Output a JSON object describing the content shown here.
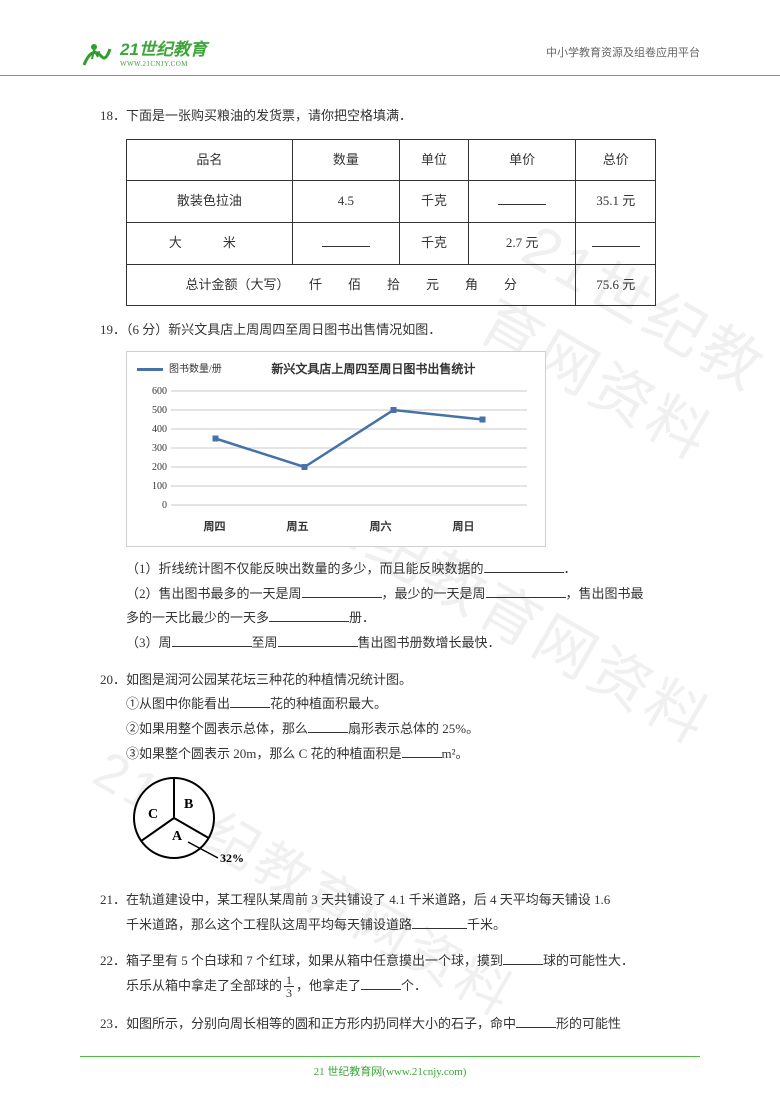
{
  "header": {
    "logo_main": "21世纪教育",
    "logo_sub": "WWW.21CNJY.COM",
    "right": "中小学教育资源及组卷应用平台"
  },
  "watermark": "21世纪教育网资料",
  "q18": {
    "num": "18．",
    "text": "下面是一张购买粮油的发货票，请你把空格填满．",
    "headers": [
      "品名",
      "数量",
      "单位",
      "单价",
      "总价"
    ],
    "row1": [
      "散装色拉油",
      "4.5",
      "千克",
      "",
      "35.1 元"
    ],
    "row2": [
      "大　米",
      "",
      "千克",
      "2.7 元",
      ""
    ],
    "row3_label": "总计金额（大写）　　仟　　佰　　拾　　元　　角　　分",
    "row3_total": "75.6 元"
  },
  "q19": {
    "num": "19．",
    "points": "（6 分）",
    "text": "新兴文具店上周周四至周日图书出售情况如图．",
    "chart": {
      "title": "新兴文具店上周四至周日图书出售统计",
      "legend": "图书数量/册",
      "yticks": [
        "0",
        "100",
        "200",
        "300",
        "400",
        "500",
        "600"
      ],
      "categories": [
        "周四",
        "周五",
        "周六",
        "周日"
      ],
      "values": [
        350,
        200,
        500,
        450
      ],
      "line_color": "#4572a7",
      "grid_color": "#c9c9c9",
      "text_color": "#333333"
    },
    "s1_a": "（1）折线统计图不仅能反映出数量的多少，而且能反映数据的",
    "s1_b": "．",
    "s2_a": "（2）售出图书最多的一天是周",
    "s2_b": "，最少的一天是周",
    "s2_c": "，售出图书最",
    "s2_d": "多的一天比最少的一天多",
    "s2_e": "册．",
    "s3_a": "（3）周",
    "s3_b": "至周",
    "s3_c": "售出图书册数增长最快．"
  },
  "q20": {
    "num": "20．",
    "text": "如图是润河公园某花坛三种花的种植情况统计图。",
    "s1_a": "①从图中你能看出",
    "s1_b": "花的种植面积最大。",
    "s2_a": "②如果用整个圆表示总体，那么",
    "s2_b": "扇形表示总体的 25%。",
    "s3_a": "③如果整个圆表示 20m，那么 C 花的种植面积是",
    "s3_b": "m²。",
    "pie": {
      "labels": {
        "A": "A",
        "B": "B",
        "C": "C",
        "pct": "32%"
      },
      "slices": [
        {
          "label": "A",
          "pct": 32
        },
        {
          "label": "B",
          "pct": 25
        },
        {
          "label": "C",
          "pct": 43
        }
      ],
      "stroke": "#000000",
      "radius": 40
    }
  },
  "q21": {
    "num": "21．",
    "text_a": "在轨道建设中，某工程队某周前 3 天共铺设了 4.1 千米道路，后 4 天平均每天铺设 1.6",
    "text_b": "千米道路，那么这个工程队这周平均每天铺设道路",
    "text_c": "千米。"
  },
  "q22": {
    "num": "22．",
    "text_a": "箱子里有 5 个白球和 7 个红球，如果从箱中任意摸出一个球，摸到",
    "text_b": "球的可能性大．",
    "text_c": "乐乐从箱中拿走了全部球的",
    "text_d": "，他拿走了",
    "text_e": "个．",
    "frac": {
      "num": "1",
      "den": "3"
    }
  },
  "q23": {
    "num": "23．",
    "text_a": "如图所示，分别向周长相等的圆和正方形内扔同样大小的石子，命中",
    "text_b": "形的可能性"
  },
  "footer": {
    "text": "21 世纪教育网(www.21cnjy.com)"
  }
}
